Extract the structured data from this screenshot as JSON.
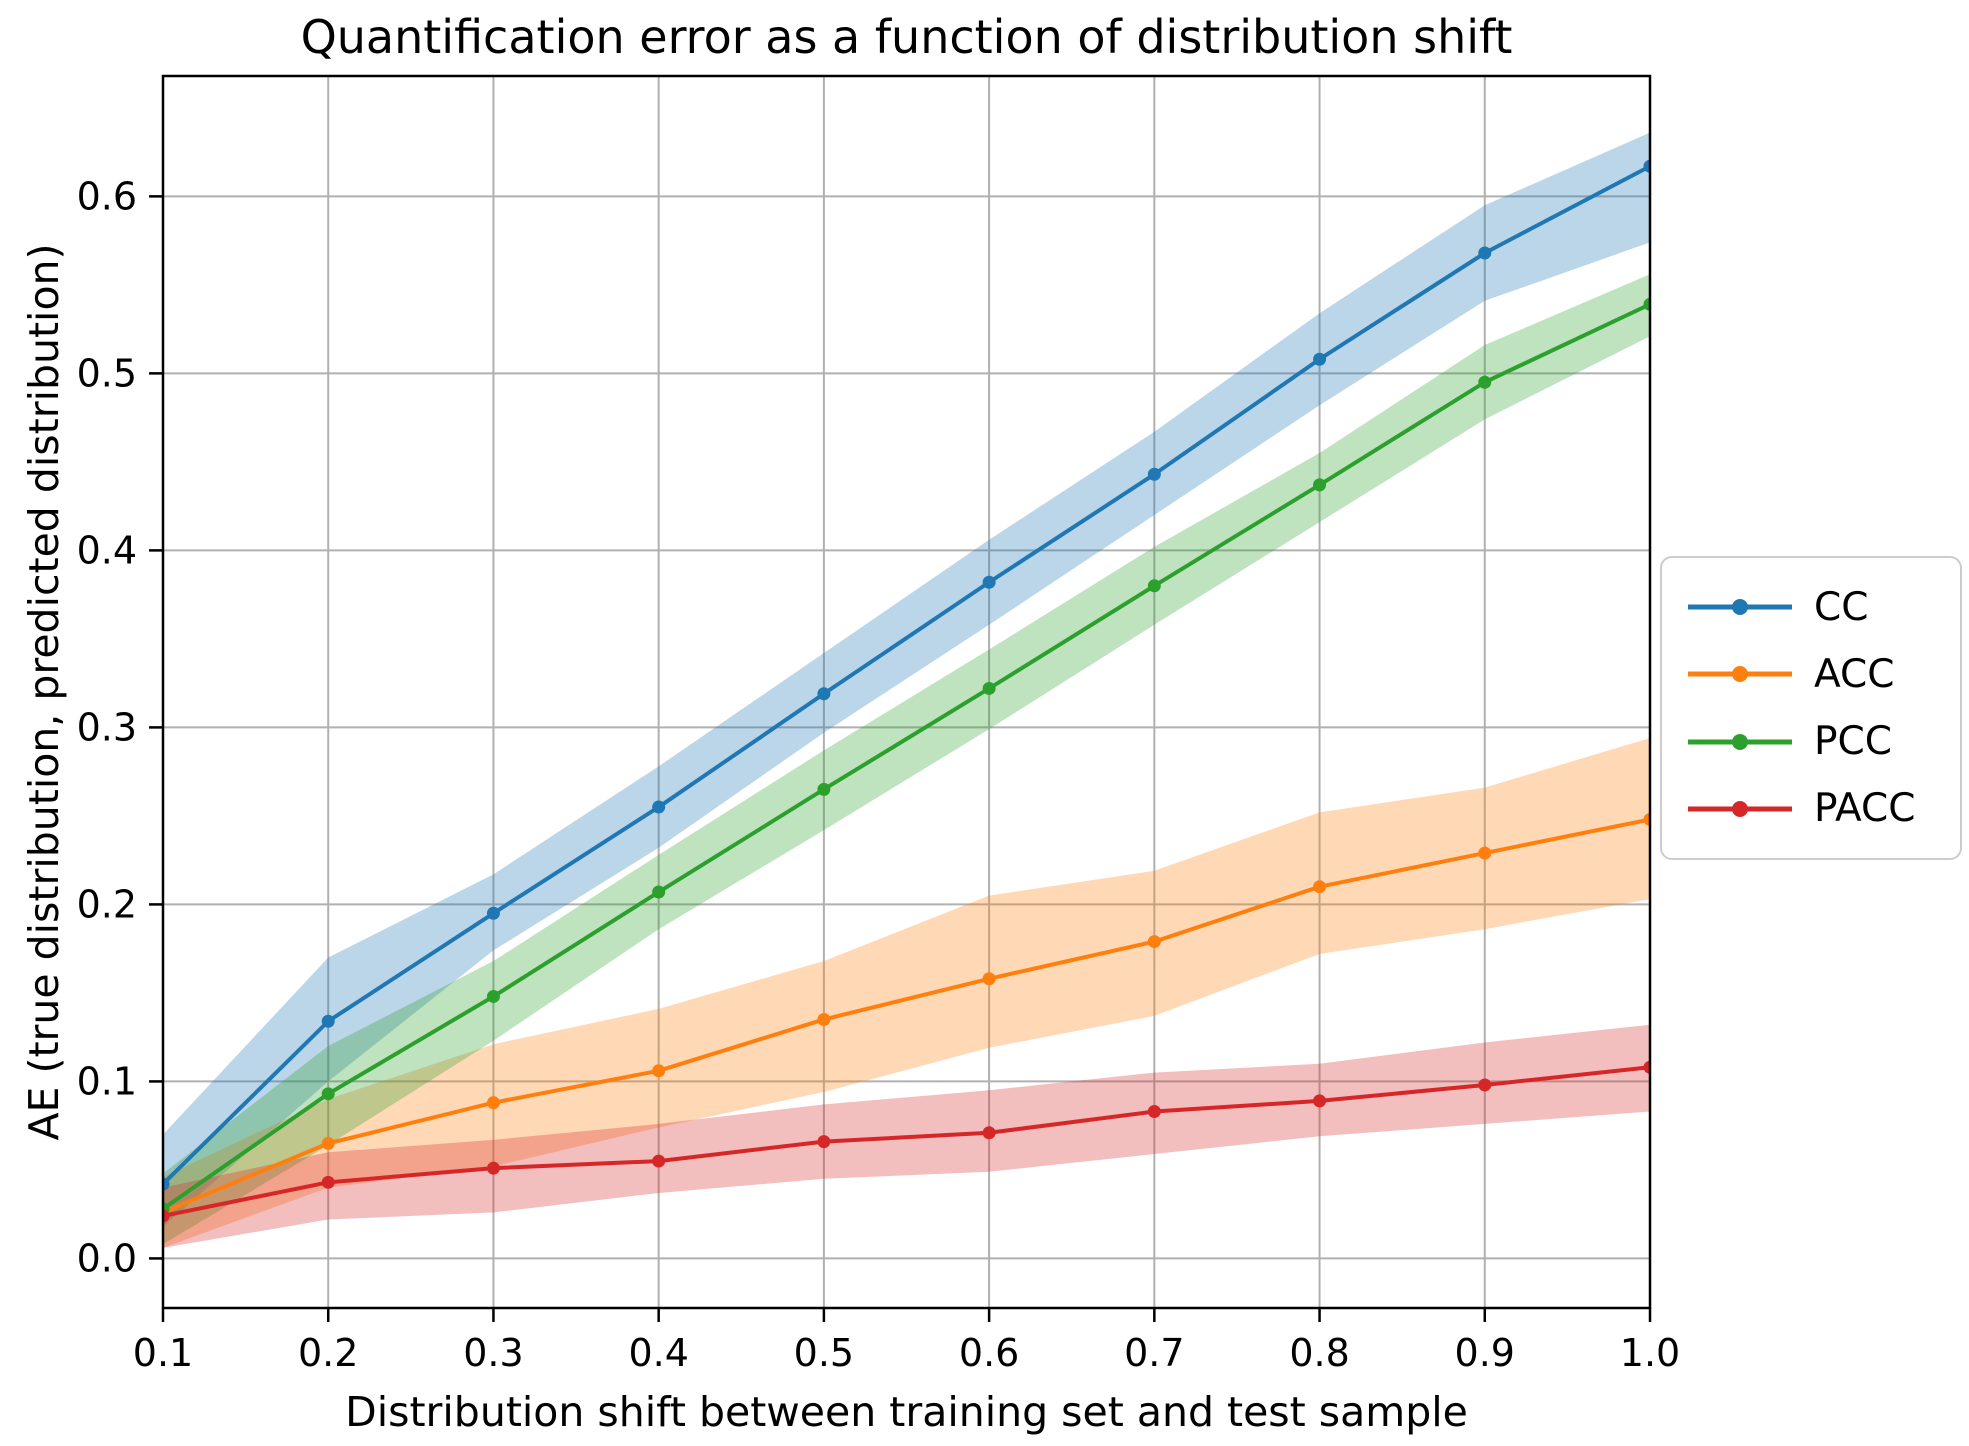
{
  "chart_data": {
    "type": "line",
    "title": "Quantification error as a function of distribution shift",
    "xlabel": "Distribution shift between training set and test sample",
    "ylabel": "AE (true distribution, predicted distribution)",
    "grid": true,
    "legend_position": "outside-right",
    "x": [
      0.1,
      0.2,
      0.3,
      0.4,
      0.5,
      0.6,
      0.7,
      0.8,
      0.9,
      1.0
    ],
    "xlim": [
      0.1,
      1.0
    ],
    "ylim": [
      -0.028,
      0.668
    ],
    "xticks": [
      "0.1",
      "0.2",
      "0.3",
      "0.4",
      "0.5",
      "0.6",
      "0.7",
      "0.8",
      "0.9",
      "1.0"
    ],
    "yticks": [
      "0.0",
      "0.1",
      "0.2",
      "0.3",
      "0.4",
      "0.5",
      "0.6"
    ],
    "grid_color": "#b0b0b0",
    "axis_color": "#000000",
    "band_opacity": 0.3,
    "series": [
      {
        "name": "CC",
        "color": "#1f77b4",
        "values": [
          0.042,
          0.134,
          0.195,
          0.255,
          0.319,
          0.382,
          0.443,
          0.508,
          0.568,
          0.617
        ],
        "band_upper": [
          0.07,
          0.17,
          0.217,
          0.278,
          0.342,
          0.406,
          0.467,
          0.534,
          0.595,
          0.636
        ],
        "band_lower": [
          0.018,
          0.1,
          0.174,
          0.232,
          0.297,
          0.358,
          0.42,
          0.482,
          0.541,
          0.574
        ]
      },
      {
        "name": "ACC",
        "color": "#ff7f0e",
        "values": [
          0.026,
          0.065,
          0.088,
          0.106,
          0.135,
          0.158,
          0.179,
          0.21,
          0.229,
          0.248
        ],
        "band_upper": [
          0.046,
          0.09,
          0.121,
          0.141,
          0.168,
          0.205,
          0.219,
          0.252,
          0.266,
          0.294
        ],
        "band_lower": [
          0.006,
          0.04,
          0.052,
          0.074,
          0.094,
          0.119,
          0.137,
          0.172,
          0.186,
          0.203
        ]
      },
      {
        "name": "PCC",
        "color": "#2ca02c",
        "values": [
          0.028,
          0.093,
          0.148,
          0.207,
          0.265,
          0.322,
          0.38,
          0.437,
          0.495,
          0.539
        ],
        "band_upper": [
          0.048,
          0.12,
          0.168,
          0.228,
          0.287,
          0.344,
          0.402,
          0.455,
          0.516,
          0.556
        ],
        "band_lower": [
          0.008,
          0.064,
          0.123,
          0.186,
          0.242,
          0.299,
          0.358,
          0.416,
          0.474,
          0.521
        ]
      },
      {
        "name": "PACC",
        "color": "#d62728",
        "values": [
          0.024,
          0.043,
          0.051,
          0.055,
          0.066,
          0.071,
          0.083,
          0.089,
          0.098,
          0.108
        ],
        "band_upper": [
          0.04,
          0.06,
          0.067,
          0.076,
          0.087,
          0.095,
          0.105,
          0.11,
          0.122,
          0.132
        ],
        "band_lower": [
          0.006,
          0.022,
          0.026,
          0.037,
          0.045,
          0.049,
          0.059,
          0.069,
          0.076,
          0.083
        ]
      }
    ]
  }
}
